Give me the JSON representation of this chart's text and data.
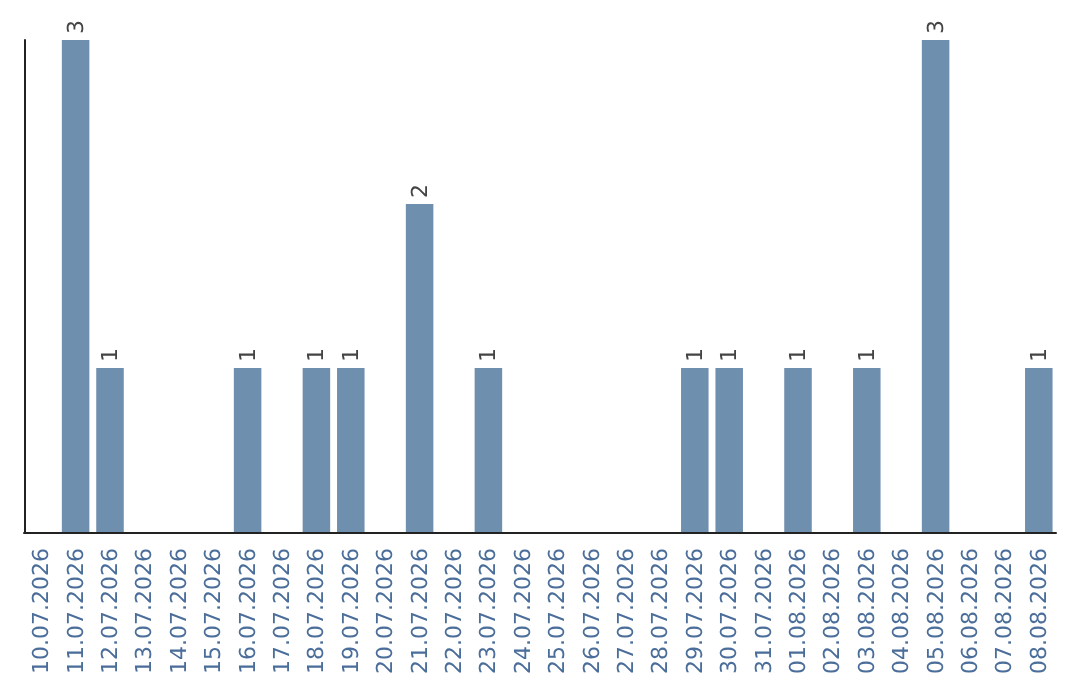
{
  "chart_data": {
    "type": "bar",
    "categories": [
      "10.07.2026",
      "11.07.2026",
      "12.07.2026",
      "13.07.2026",
      "14.07.2026",
      "15.07.2026",
      "16.07.2026",
      "17.07.2026",
      "18.07.2026",
      "19.07.2026",
      "20.07.2026",
      "21.07.2026",
      "22.07.2026",
      "23.07.2026",
      "24.07.2026",
      "25.07.2026",
      "26.07.2026",
      "27.07.2026",
      "28.07.2026",
      "29.07.2026",
      "30.07.2026",
      "31.07.2026",
      "01.08.2026",
      "02.08.2026",
      "03.08.2026",
      "04.08.2026",
      "05.08.2026",
      "06.08.2026",
      "07.08.2026",
      "08.08.2026"
    ],
    "values": [
      0,
      3,
      1,
      0,
      0,
      0,
      1,
      0,
      1,
      1,
      0,
      2,
      0,
      1,
      0,
      0,
      0,
      0,
      0,
      1,
      1,
      0,
      1,
      0,
      1,
      0,
      3,
      0,
      0,
      1
    ],
    "value_labels": [
      null,
      "3",
      "1",
      null,
      null,
      null,
      "1",
      null,
      "1",
      "1",
      null,
      "2",
      null,
      "1",
      null,
      null,
      null,
      null,
      null,
      "1",
      "1",
      null,
      "1",
      null,
      "1",
      null,
      "3",
      null,
      null,
      "1"
    ],
    "color": "#6f8fae",
    "ylim": [
      0,
      3
    ]
  }
}
